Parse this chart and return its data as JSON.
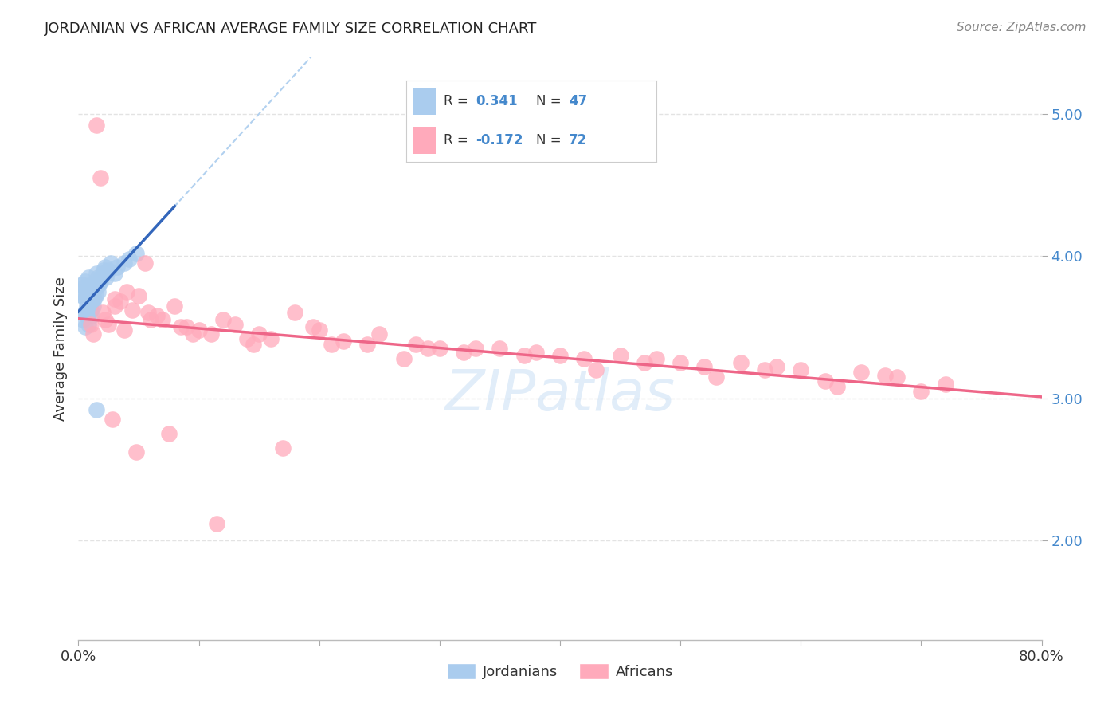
{
  "title": "JORDANIAN VS AFRICAN AVERAGE FAMILY SIZE CORRELATION CHART",
  "source": "Source: ZipAtlas.com",
  "ylabel": "Average Family Size",
  "xlim": [
    0.0,
    80.0
  ],
  "ylim": [
    1.3,
    5.4
  ],
  "yticks_right": [
    2.0,
    3.0,
    4.0,
    5.0
  ],
  "r_jordanian": 0.341,
  "n_jordanian": 47,
  "r_african": -0.172,
  "n_african": 72,
  "jordanian_color": "#aaccee",
  "african_color": "#ffaabb",
  "jordanian_line_color": "#3366bb",
  "african_line_color": "#ee6688",
  "dashed_line_color": "#aaccee",
  "background_color": "#ffffff",
  "grid_color": "#dddddd",
  "jordanians_x": [
    0.2,
    0.3,
    0.4,
    0.5,
    0.6,
    0.6,
    0.7,
    0.7,
    0.8,
    0.8,
    0.9,
    0.9,
    1.0,
    1.0,
    1.0,
    1.1,
    1.1,
    1.2,
    1.2,
    1.3,
    1.3,
    1.4,
    1.5,
    1.5,
    1.6,
    1.6,
    1.7,
    1.8,
    1.9,
    2.0,
    2.1,
    2.2,
    2.3,
    2.5,
    2.7,
    3.0,
    3.2,
    3.8,
    4.2,
    4.8,
    0.4,
    0.5,
    0.6,
    0.7,
    0.8,
    1.0,
    1.5
  ],
  "jordanians_y": [
    3.75,
    3.8,
    3.72,
    3.78,
    3.7,
    3.82,
    3.65,
    3.75,
    3.68,
    3.85,
    3.6,
    3.7,
    3.62,
    3.72,
    3.8,
    3.58,
    3.68,
    3.65,
    3.75,
    3.7,
    3.8,
    3.72,
    3.78,
    3.88,
    3.75,
    3.85,
    3.8,
    3.82,
    3.85,
    3.88,
    3.9,
    3.92,
    3.85,
    3.9,
    3.95,
    3.88,
    3.92,
    3.95,
    3.98,
    4.02,
    3.55,
    3.6,
    3.5,
    3.58,
    3.52,
    3.62,
    2.92
  ],
  "africans_x": [
    1.5,
    3.5,
    5.5,
    8.0,
    12.0,
    18.0,
    25.0,
    35.0,
    45.0,
    55.0,
    65.0,
    72.0,
    1.8,
    3.0,
    5.0,
    8.5,
    13.0,
    20.0,
    28.0,
    38.0,
    48.0,
    58.0,
    68.0,
    2.0,
    4.0,
    6.5,
    10.0,
    15.0,
    22.0,
    30.0,
    40.0,
    50.0,
    60.0,
    70.0,
    2.5,
    4.5,
    7.0,
    11.0,
    16.0,
    24.0,
    32.0,
    42.0,
    52.0,
    62.0,
    3.0,
    6.0,
    9.0,
    14.0,
    21.0,
    29.0,
    37.0,
    47.0,
    57.0,
    67.0,
    1.2,
    2.2,
    3.8,
    5.8,
    9.5,
    14.5,
    19.5,
    27.0,
    33.0,
    43.0,
    53.0,
    63.0,
    1.0,
    2.8,
    4.8,
    7.5,
    11.5,
    17.0
  ],
  "africans_y": [
    4.92,
    3.68,
    3.95,
    3.65,
    3.55,
    3.6,
    3.45,
    3.35,
    3.3,
    3.25,
    3.18,
    3.1,
    4.55,
    3.7,
    3.72,
    3.5,
    3.52,
    3.48,
    3.38,
    3.32,
    3.28,
    3.22,
    3.15,
    3.6,
    3.75,
    3.58,
    3.48,
    3.45,
    3.4,
    3.35,
    3.3,
    3.25,
    3.2,
    3.05,
    3.52,
    3.62,
    3.55,
    3.45,
    3.42,
    3.38,
    3.32,
    3.28,
    3.22,
    3.12,
    3.65,
    3.55,
    3.5,
    3.42,
    3.38,
    3.35,
    3.3,
    3.25,
    3.2,
    3.16,
    3.45,
    3.55,
    3.48,
    3.6,
    3.45,
    3.38,
    3.5,
    3.28,
    3.35,
    3.2,
    3.15,
    3.08,
    3.52,
    2.85,
    2.62,
    2.75,
    2.12,
    2.65
  ]
}
